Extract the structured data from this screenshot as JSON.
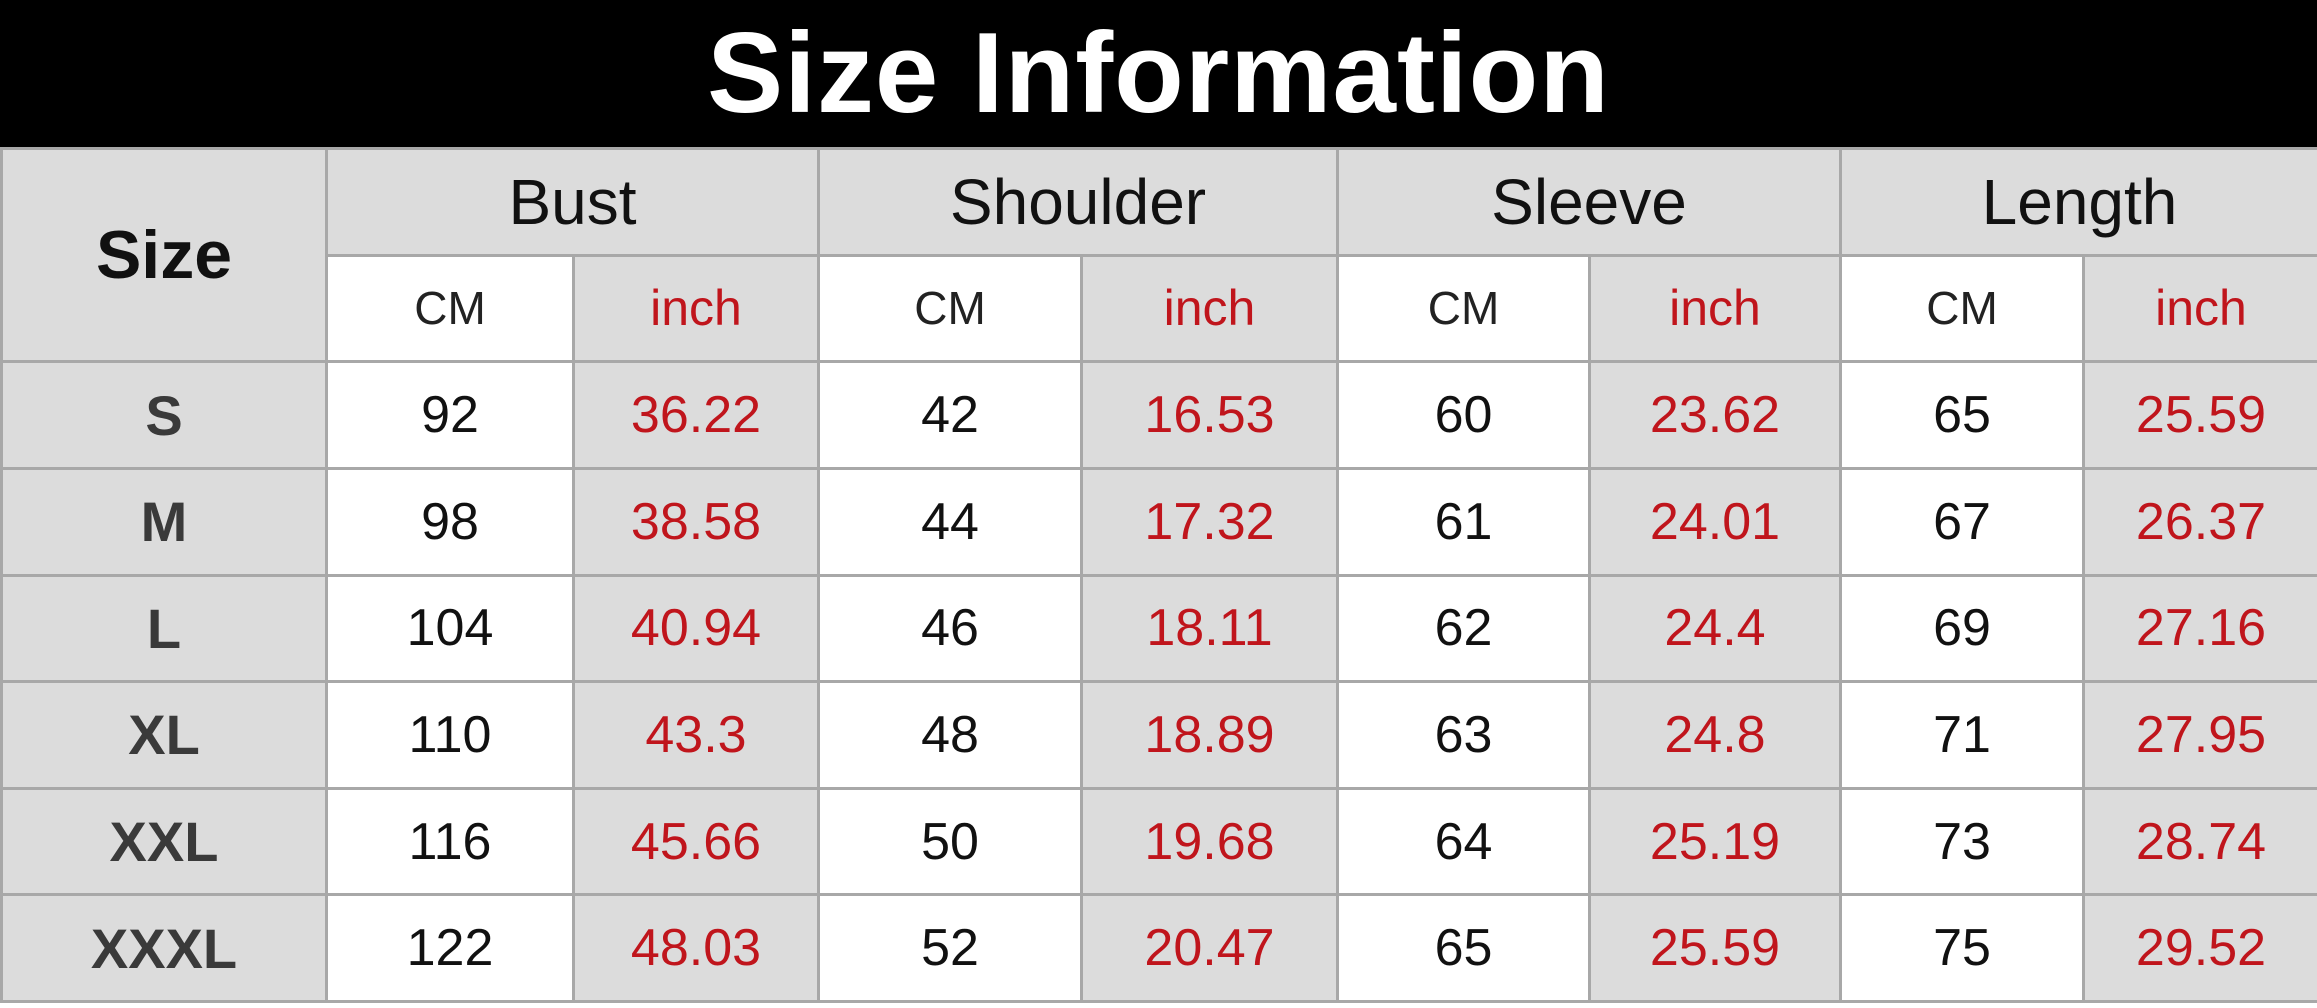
{
  "title": "Size Information",
  "header": {
    "size_label": "Size",
    "groups": [
      "Bust",
      "Shoulder",
      "Sleeve",
      "Length"
    ],
    "unit_cm": "CM",
    "unit_inch": "inch"
  },
  "rows": [
    {
      "size": "S",
      "values": [
        "92",
        "36.22",
        "42",
        "16.53",
        "60",
        "23.62",
        "65",
        "25.59"
      ]
    },
    {
      "size": "M",
      "values": [
        "98",
        "38.58",
        "44",
        "17.32",
        "61",
        "24.01",
        "67",
        "26.37"
      ]
    },
    {
      "size": "L",
      "values": [
        "104",
        "40.94",
        "46",
        "18.11",
        "62",
        "24.4",
        "69",
        "27.16"
      ]
    },
    {
      "size": "XL",
      "values": [
        "110",
        "43.3",
        "48",
        "18.89",
        "63",
        "24.8",
        "71",
        "27.95"
      ]
    },
    {
      "size": "XXL",
      "values": [
        "116",
        "45.66",
        "50",
        "19.68",
        "64",
        "25.19",
        "73",
        "28.74"
      ]
    },
    {
      "size": "XXXL",
      "values": [
        "122",
        "48.03",
        "52",
        "20.47",
        "65",
        "25.59",
        "75",
        "29.52"
      ]
    }
  ],
  "colors": {
    "title_bg": "#000000",
    "title_text": "#ffffff",
    "inch_text": "#c0151c",
    "gray_cell": "#dcdcdc",
    "border": "#a8a8a8"
  }
}
